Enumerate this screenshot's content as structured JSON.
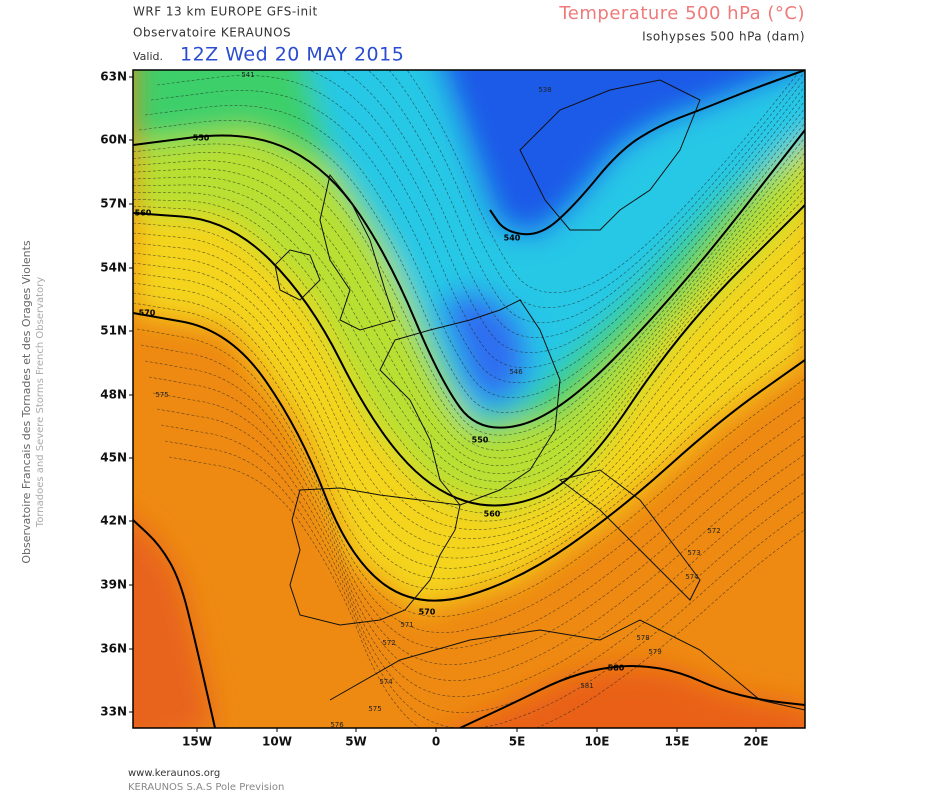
{
  "header": {
    "model": "WRF 13 km EUROPE  GFS-init",
    "source": "Observatoire KERAUNOS",
    "valid_label": "Valid.",
    "valid_time": "12Z Wed 20 MAY 2015",
    "field": "Temperature 500 hPa (°C)",
    "contours": "Isohypses 500 hPa (dam)"
  },
  "side": {
    "fr": "Observatoire Francais des Tornades et des Orages Violents",
    "en": "Tornadoes and Severe Storms French Observatory"
  },
  "footer": {
    "url": "www.keraunos.org",
    "company": "KERAUNOS S.A.S Pole Prevision"
  },
  "latitude_labels": [
    "63N",
    "60N",
    "57N",
    "54N",
    "51N",
    "48N",
    "45N",
    "42N",
    "39N",
    "36N",
    "33N"
  ],
  "longitude_labels": [
    "15W",
    "10W",
    "5W",
    "0",
    "5E",
    "10E",
    "15E",
    "20E"
  ],
  "bold_contour_labels": [
    "550",
    "560",
    "570",
    "540",
    "550",
    "560",
    "570",
    "580"
  ],
  "contour_labels": [
    "541",
    "538",
    "546",
    "572",
    "573",
    "574",
    "575",
    "578",
    "579",
    "581",
    "576",
    "575",
    "574",
    "572",
    "571"
  ]
}
